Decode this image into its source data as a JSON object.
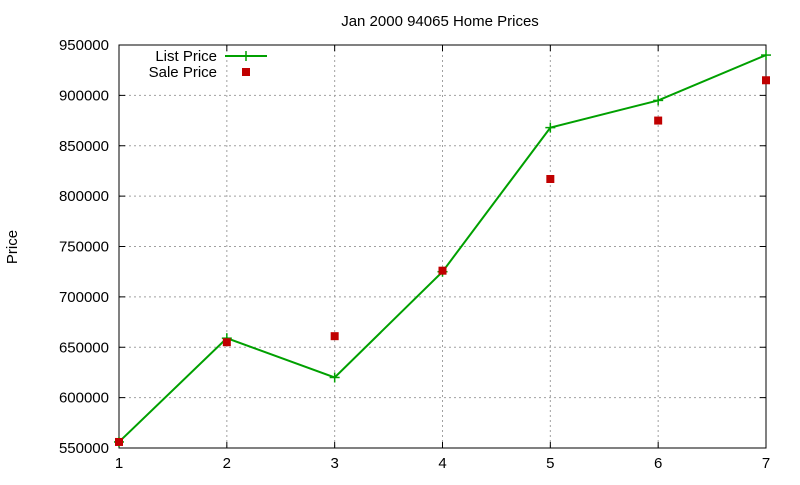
{
  "chart_data": {
    "type": "line",
    "title": "Jan 2000 94065 Home Prices",
    "xlabel": "",
    "ylabel": "Price",
    "xlim": [
      1,
      7
    ],
    "ylim": [
      550000,
      950000
    ],
    "x_ticks": [
      1,
      2,
      3,
      4,
      5,
      6,
      7
    ],
    "y_ticks": [
      550000,
      600000,
      650000,
      700000,
      750000,
      800000,
      850000,
      900000,
      950000
    ],
    "grid": true,
    "legend_position": "top-left",
    "series": [
      {
        "name": "List Price",
        "style": "line-with-plus-markers",
        "color": "#00a000",
        "x": [
          1,
          2,
          3,
          4,
          5,
          6,
          7
        ],
        "y": [
          556000,
          659000,
          620000,
          725000,
          868000,
          895000,
          940000
        ]
      },
      {
        "name": "Sale Price",
        "style": "square-markers",
        "color": "#c00000",
        "x": [
          1,
          2,
          3,
          4,
          5,
          6,
          7
        ],
        "y": [
          556000,
          655000,
          661000,
          726000,
          817000,
          875000,
          915000
        ]
      }
    ]
  }
}
